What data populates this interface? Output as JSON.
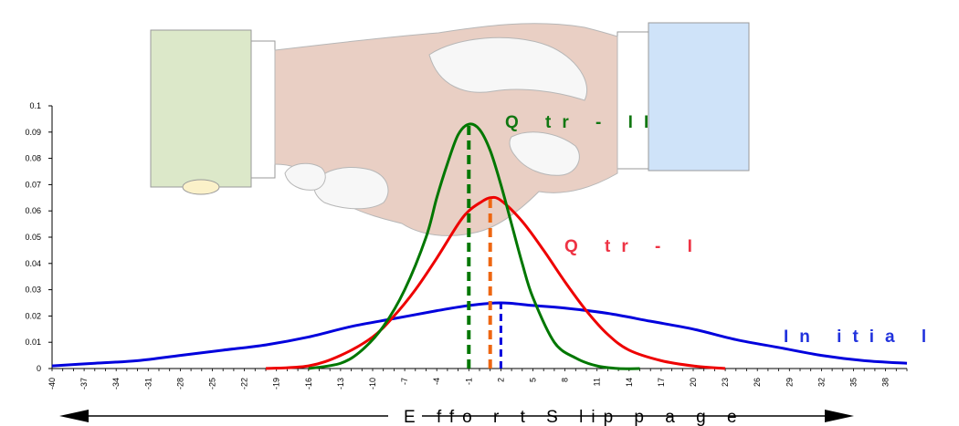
{
  "chart_data": {
    "type": "line",
    "xlabel": "E ffo r t S lip p a g e",
    "xlim": [
      -40,
      40
    ],
    "ylim": [
      0,
      0.1
    ],
    "y_ticks": [
      "0",
      "0.01",
      "0.02",
      "0.03",
      "0.04",
      "0.05",
      "0.06",
      "0.07",
      "0.08",
      "0.09",
      "0.1"
    ],
    "x_ticks": [
      "-40",
      "-37",
      "-34",
      "-31",
      "-28",
      "-25",
      "-22",
      "-19",
      "-16",
      "-13",
      "-10",
      "-7",
      "-4",
      "-1",
      "2",
      "5",
      "8",
      "11",
      "14",
      "17",
      "20",
      "23",
      "26",
      "29",
      "32",
      "35",
      "38"
    ],
    "grid": false,
    "legend": "none",
    "series": [
      {
        "name": "In itia l",
        "color": "#0000dd",
        "peak_x": 2,
        "x": [
          -40,
          -36,
          -32,
          -28,
          -24,
          -20,
          -16,
          -12,
          -8,
          -4,
          -1,
          2,
          5,
          8,
          12,
          16,
          20,
          24,
          28,
          32,
          36,
          40
        ],
        "y": [
          0.001,
          0.002,
          0.003,
          0.005,
          0.007,
          0.009,
          0.012,
          0.016,
          0.019,
          0.022,
          0.024,
          0.025,
          0.024,
          0.023,
          0.021,
          0.018,
          0.015,
          0.011,
          0.008,
          0.005,
          0.003,
          0.002
        ]
      },
      {
        "name": "Q tr - I",
        "color": "#ee0000",
        "peak_x": 1,
        "x": [
          -20,
          -16,
          -13,
          -10,
          -8,
          -6,
          -4,
          -2,
          -1,
          0,
          1,
          2,
          4,
          6,
          8,
          10,
          12,
          14,
          17,
          20,
          23
        ],
        "y": [
          0.0,
          0.001,
          0.005,
          0.012,
          0.02,
          0.03,
          0.042,
          0.055,
          0.06,
          0.063,
          0.065,
          0.064,
          0.056,
          0.045,
          0.033,
          0.022,
          0.013,
          0.007,
          0.003,
          0.001,
          0.0
        ]
      },
      {
        "name": "Q tr - II",
        "color": "#007700",
        "peak_x": -1,
        "x": [
          -16,
          -13,
          -11,
          -9,
          -7,
          -5,
          -4,
          -3,
          -2,
          -1,
          0,
          1,
          2,
          3,
          4,
          5,
          7,
          9,
          11,
          13,
          15
        ],
        "y": [
          0.0,
          0.002,
          0.007,
          0.016,
          0.03,
          0.05,
          0.065,
          0.078,
          0.089,
          0.093,
          0.091,
          0.083,
          0.07,
          0.055,
          0.04,
          0.027,
          0.01,
          0.004,
          0.001,
          0.0,
          0.0
        ]
      }
    ]
  }
}
